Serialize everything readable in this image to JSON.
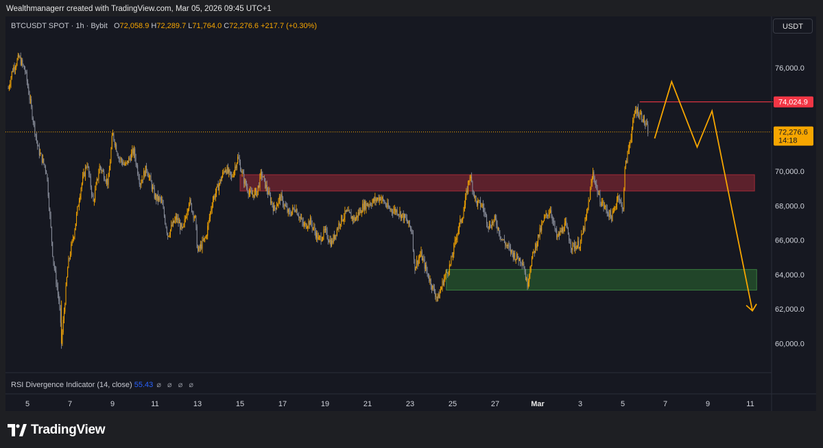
{
  "credit": "Wealthmanagerr created with TradingView.com, Mar 05, 2026 09:45 UTC+1",
  "legend": {
    "symbol": "BTCUSDT SPOT · 1h · Bybit",
    "o_label": "O",
    "o_value": "72,058.9",
    "h_label": "H",
    "h_value": "72,289.7",
    "l_label": "L",
    "l_value": "71,764.0",
    "c_label": "C",
    "c_value": "72,276.6",
    "change": "+217.7 (+0.30%)"
  },
  "currency_button": "USDT",
  "rsi": {
    "label": "RSI Divergence Indicator (14, close)",
    "value": "55.43",
    "placeholders": "⌀ ⌀ ⌀ ⌀"
  },
  "brand": "TradingView",
  "colors": {
    "background": "#161821",
    "candle": "#f7a600",
    "candle_alt": "#8a8f9c",
    "resistance_line": "#f23645",
    "supply_zone": "#f23645",
    "demand_zone": "#2e7d32",
    "projection": "#f7a600"
  },
  "chart_data": {
    "type": "line",
    "title": "",
    "xlabel": "",
    "ylabel": "",
    "ylim": [
      58500,
      78000
    ],
    "x_ticks": [
      {
        "label": "5",
        "day": 5
      },
      {
        "label": "7",
        "day": 7
      },
      {
        "label": "9",
        "day": 9
      },
      {
        "label": "11",
        "day": 11
      },
      {
        "label": "13",
        "day": 13
      },
      {
        "label": "15",
        "day": 15
      },
      {
        "label": "17",
        "day": 17
      },
      {
        "label": "19",
        "day": 19
      },
      {
        "label": "21",
        "day": 21
      },
      {
        "label": "23",
        "day": 23
      },
      {
        "label": "25",
        "day": 25
      },
      {
        "label": "27",
        "day": 27
      },
      {
        "label": "Mar",
        "day": 29
      },
      {
        "label": "3",
        "day": 31
      },
      {
        "label": "5",
        "day": 33
      },
      {
        "label": "7",
        "day": 35
      },
      {
        "label": "9",
        "day": 37
      },
      {
        "label": "11",
        "day": 39
      }
    ],
    "y_ticks": [
      {
        "label": "76,000.0",
        "value": 76000
      },
      {
        "label": "70,000.0",
        "value": 70000
      },
      {
        "label": "68,000.0",
        "value": 68000
      },
      {
        "label": "66,000.0",
        "value": 66000
      },
      {
        "label": "64,000.0",
        "value": 64000
      },
      {
        "label": "62,000.0",
        "value": 62000
      },
      {
        "label": "60,000.0",
        "value": 60000
      }
    ],
    "series": [
      {
        "type": "price",
        "points": [
          [
            4.1,
            74800
          ],
          [
            4.3,
            75900
          ],
          [
            4.6,
            76600
          ],
          [
            4.9,
            75800
          ],
          [
            5.2,
            73500
          ],
          [
            5.5,
            71300
          ],
          [
            5.9,
            70000
          ],
          [
            6.2,
            65000
          ],
          [
            6.5,
            62300
          ],
          [
            6.6,
            60000
          ],
          [
            6.9,
            64500
          ],
          [
            7.2,
            66500
          ],
          [
            7.5,
            69000
          ],
          [
            7.8,
            70500
          ],
          [
            8.1,
            68200
          ],
          [
            8.4,
            70300
          ],
          [
            8.8,
            69300
          ],
          [
            9.0,
            72200
          ],
          [
            9.3,
            70800
          ],
          [
            9.6,
            70300
          ],
          [
            10.0,
            71200
          ],
          [
            10.3,
            69300
          ],
          [
            10.6,
            70200
          ],
          [
            11.0,
            68500
          ],
          [
            11.3,
            68300
          ],
          [
            11.6,
            66300
          ],
          [
            12.0,
            67300
          ],
          [
            12.3,
            66500
          ],
          [
            12.6,
            68300
          ],
          [
            12.9,
            67200
          ],
          [
            13.0,
            65300
          ],
          [
            13.4,
            66200
          ],
          [
            13.7,
            68300
          ],
          [
            14.0,
            69200
          ],
          [
            14.3,
            70200
          ],
          [
            14.6,
            69600
          ],
          [
            14.9,
            70800
          ],
          [
            15.2,
            69400
          ],
          [
            15.5,
            68600
          ],
          [
            15.8,
            68800
          ],
          [
            16.0,
            69900
          ],
          [
            16.3,
            68800
          ],
          [
            16.6,
            67800
          ],
          [
            16.9,
            68500
          ],
          [
            17.3,
            67500
          ],
          [
            17.6,
            67900
          ],
          [
            18.0,
            66800
          ],
          [
            18.3,
            67100
          ],
          [
            18.7,
            66000
          ],
          [
            19.0,
            66500
          ],
          [
            19.3,
            65800
          ],
          [
            19.7,
            67100
          ],
          [
            20.0,
            67600
          ],
          [
            20.4,
            67200
          ],
          [
            20.8,
            68000
          ],
          [
            21.2,
            68200
          ],
          [
            21.6,
            68500
          ],
          [
            22.0,
            67800
          ],
          [
            22.4,
            67700
          ],
          [
            22.8,
            67200
          ],
          [
            23.1,
            66500
          ],
          [
            23.2,
            64400
          ],
          [
            23.5,
            65200
          ],
          [
            23.8,
            64100
          ],
          [
            24.1,
            63100
          ],
          [
            24.3,
            62600
          ],
          [
            24.6,
            63800
          ],
          [
            24.9,
            64600
          ],
          [
            25.2,
            66400
          ],
          [
            25.5,
            67600
          ],
          [
            25.8,
            69800
          ],
          [
            26.1,
            68200
          ],
          [
            26.4,
            68000
          ],
          [
            26.7,
            66800
          ],
          [
            27.0,
            67200
          ],
          [
            27.3,
            66100
          ],
          [
            27.7,
            65400
          ],
          [
            28.0,
            65000
          ],
          [
            28.3,
            64800
          ],
          [
            28.5,
            63400
          ],
          [
            28.7,
            64800
          ],
          [
            29.0,
            66100
          ],
          [
            29.3,
            67200
          ],
          [
            29.6,
            67800
          ],
          [
            29.9,
            66100
          ],
          [
            30.3,
            66900
          ],
          [
            30.6,
            65600
          ],
          [
            31.0,
            65800
          ],
          [
            31.3,
            67400
          ],
          [
            31.6,
            69900
          ],
          [
            31.9,
            68400
          ],
          [
            32.2,
            67800
          ],
          [
            32.5,
            67300
          ],
          [
            32.8,
            68700
          ],
          [
            33.0,
            67600
          ],
          [
            33.1,
            70100
          ],
          [
            33.3,
            71500
          ],
          [
            33.6,
            73600
          ],
          [
            33.9,
            73200
          ],
          [
            34.2,
            72300
          ]
        ]
      },
      {
        "type": "projection",
        "points": [
          [
            34.5,
            71900
          ],
          [
            35.3,
            75200
          ],
          [
            36.5,
            71400
          ],
          [
            37.2,
            73500
          ],
          [
            39.1,
            61900
          ]
        ]
      },
      {
        "type": "supply_zone",
        "x_start": 15.0,
        "x_end": 39.2,
        "y_low": 68850,
        "y_high": 69800
      },
      {
        "type": "demand_zone",
        "x_start": 24.7,
        "x_end": 39.3,
        "y_low": 63100,
        "y_high": 64300
      },
      {
        "type": "resistance_line",
        "label": "74,024.9",
        "value": 74024.9,
        "x_start": 33.8,
        "x_end": 39.3
      },
      {
        "type": "last_price",
        "label": "72,276.6",
        "countdown": "14:18",
        "value": 72276.6
      }
    ],
    "grid": false,
    "legend_position": "top-left"
  }
}
